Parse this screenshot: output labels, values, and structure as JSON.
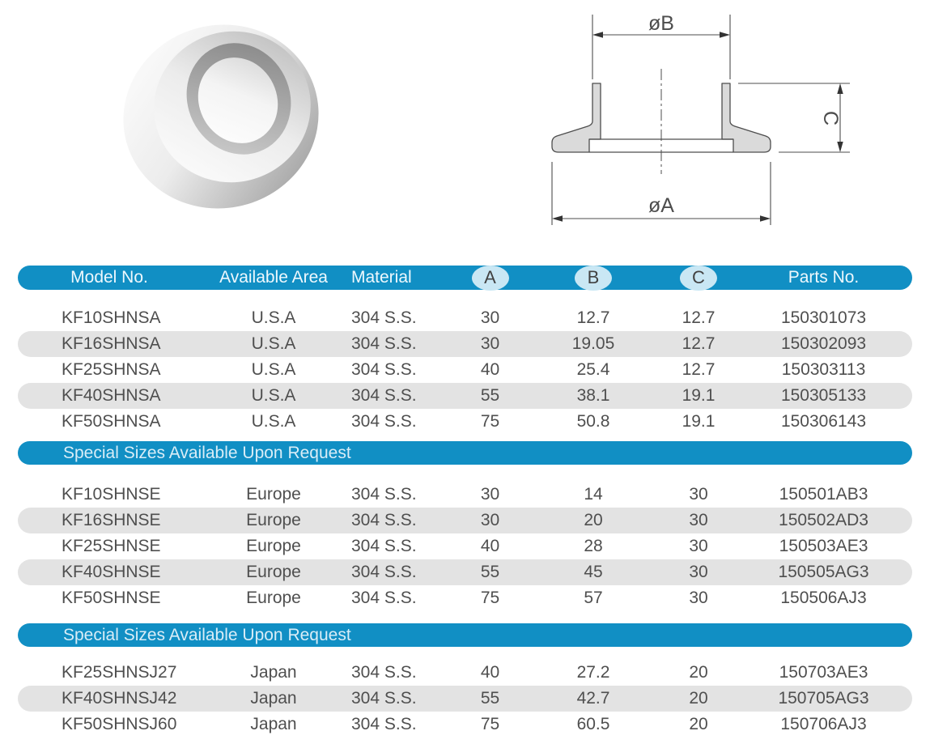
{
  "colors": {
    "accent_blue": "#118fc4",
    "badge_blue": "#c9e7f4",
    "row_gray": "#e3e3e3",
    "text_gray": "#4f4f4f",
    "drawing_fill": "#dadada",
    "drawing_line": "#4d4d4d"
  },
  "drawing": {
    "dim_top": "øB",
    "dim_bottom": "øA",
    "dim_right": "C"
  },
  "table": {
    "headers": [
      "Model No.",
      "Available Area",
      "Material",
      "A",
      "B",
      "C",
      "Parts No."
    ],
    "sections": [
      {
        "banner": null,
        "rows": [
          [
            "KF10SHNSA",
            "U.S.A",
            "304 S.S.",
            "30",
            "12.7",
            "12.7",
            "150301073"
          ],
          [
            "KF16SHNSA",
            "U.S.A",
            "304 S.S.",
            "30",
            "19.05",
            "12.7",
            "150302093"
          ],
          [
            "KF25SHNSA",
            "U.S.A",
            "304 S.S.",
            "40",
            "25.4",
            "12.7",
            "150303113"
          ],
          [
            "KF40SHNSA",
            "U.S.A",
            "304 S.S.",
            "55",
            "38.1",
            "19.1",
            "150305133"
          ],
          [
            "KF50SHNSA",
            "U.S.A",
            "304 S.S.",
            "75",
            "50.8",
            "19.1",
            "150306143"
          ]
        ]
      },
      {
        "banner": "Special Sizes Available Upon Request",
        "rows": [
          [
            "KF10SHNSE",
            "Europe",
            "304 S.S.",
            "30",
            "14",
            "30",
            "150501AB3"
          ],
          [
            "KF16SHNSE",
            "Europe",
            "304 S.S.",
            "30",
            "20",
            "30",
            "150502AD3"
          ],
          [
            "KF25SHNSE",
            "Europe",
            "304 S.S.",
            "40",
            "28",
            "30",
            "150503AE3"
          ],
          [
            "KF40SHNSE",
            "Europe",
            "304 S.S.",
            "55",
            "45",
            "30",
            "150505AG3"
          ],
          [
            "KF50SHNSE",
            "Europe",
            "304 S.S.",
            "75",
            "57",
            "30",
            "150506AJ3"
          ]
        ]
      },
      {
        "banner": "Special Sizes Available Upon Request",
        "rows": [
          [
            "KF25SHNSJ27",
            "Japan",
            "304 S.S.",
            "40",
            "27.2",
            "20",
            "150703AE3"
          ],
          [
            "KF40SHNSJ42",
            "Japan",
            "304 S.S.",
            "55",
            "42.7",
            "20",
            "150705AG3"
          ],
          [
            "KF50SHNSJ60",
            "Japan",
            "304 S.S.",
            "75",
            "60.5",
            "20",
            "150706AJ3"
          ]
        ]
      }
    ]
  }
}
